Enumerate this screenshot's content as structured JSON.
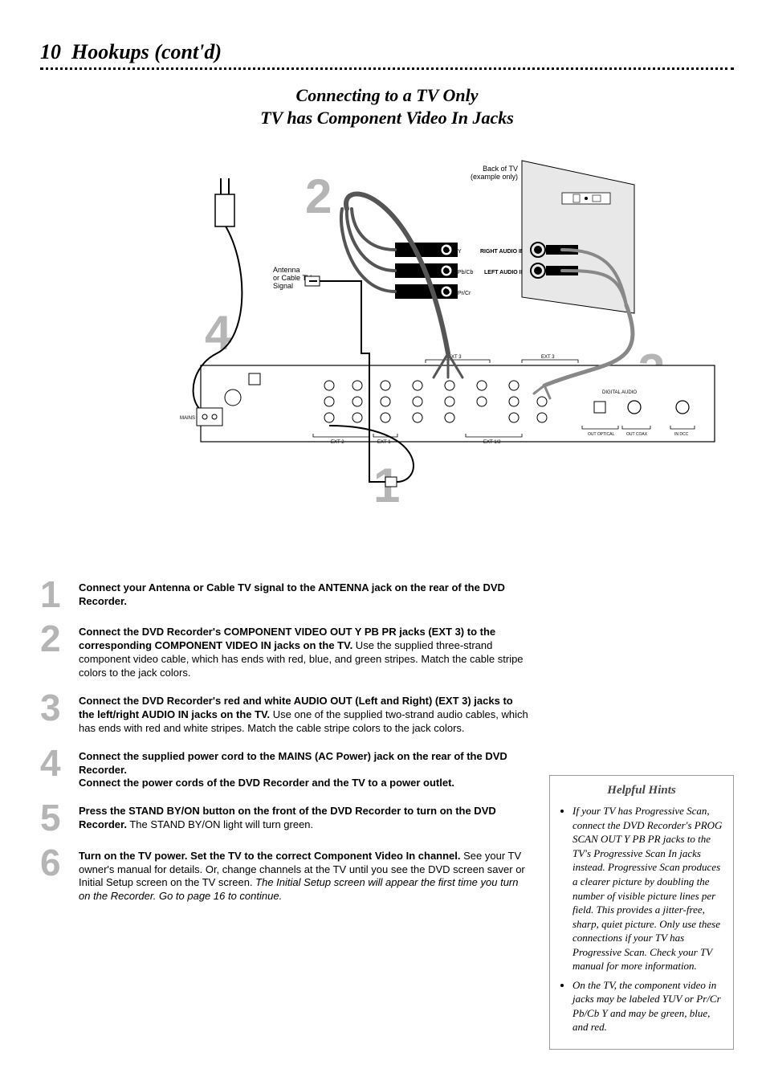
{
  "page": {
    "number": "10",
    "title": "Hookups (cont'd)",
    "section_line1": "Connecting to a TV Only",
    "section_line2": "TV has Component Video In Jacks"
  },
  "diagram": {
    "big_numbers": {
      "n1": "1",
      "n2": "2",
      "n3": "3",
      "n4": "4"
    },
    "labels": {
      "back_of_tv": "Back of TV\n(example only)",
      "antenna_signal": "Antenna\nor Cable TV\nSignal",
      "right_audio_in": "RIGHT AUDIO IN",
      "left_audio_in": "LEFT AUDIO IN",
      "y": "Y",
      "pbcb": "Pb/Cb",
      "prcr": "Pr/Cr"
    },
    "colors": {
      "num_gray": "#b5b5b5",
      "panel_gray": "#cfcfcf",
      "line": "#000000",
      "tv_fill": "#d9d9d9",
      "cable_dark": "#666666"
    }
  },
  "steps": [
    {
      "num": "1",
      "html": "<span class='bold'>Connect your Antenna or Cable TV signal to the ANTENNA jack on the rear of the DVD Recorder.</span>"
    },
    {
      "num": "2",
      "html": "<span class='bold'>Connect the DVD Recorder's COMPONENT VIDEO OUT Y P<span class='smallcaps'>B</span> P<span class='smallcaps'>R</span> jacks (EXT 3) to the corresponding COMPONENT VIDEO IN jacks on the TV.</span>  Use the supplied three-strand component video cable, which has ends with red, blue, and green stripes. Match the cable stripe colors to the jack colors."
    },
    {
      "num": "3",
      "html": "<span class='bold'>Connect the DVD Recorder's red and white AUDIO OUT (Left and Right) (EXT 3) jacks to the left/right AUDIO IN jacks on the TV.</span> Use one of the supplied two-strand audio cables, which has ends with red and white stripes. Match the cable stripe colors to the jack colors."
    },
    {
      "num": "4",
      "html": "<span class='bold'>Connect the supplied power cord to the MAINS (AC Power) jack on the rear of the DVD Recorder.<br>Connect the power cords of the DVD Recorder and the TV to a power outlet.</span>"
    },
    {
      "num": "5",
      "html": "<span class='bold'>Press the STAND BY/ON button on the front of the DVD Recorder to turn on the DVD Recorder.</span> The STAND BY/ON light will turn green."
    },
    {
      "num": "6",
      "html": "<span class='bold'>Turn on the TV power. Set the TV to the correct Component Video In channel.</span>  See your TV owner's manual for details. Or, change channels at the TV until you see the DVD screen saver or Initial Setup screen on the TV screen. <span class='ital'>The Initial Setup screen will appear the first time you turn on the Recorder. Go to page 16 to continue.</span>"
    }
  ],
  "hints": {
    "title": "Helpful Hints",
    "items": [
      "If your TV has Progressive Scan, connect the DVD Recorder's PROG SCAN OUT Y PB PR jacks to the TV's Progressive Scan In jacks instead. Progressive Scan produces a clearer picture by doubling the number of visible picture lines per field. This provides a jitter-free, sharp, quiet picture. Only use these connections if your TV has Progressive Scan. Check your TV manual for more information.",
      "On the TV, the component video in jacks may be labeled YUV or Pr/Cr Pb/Cb Y and may be green, blue, and red."
    ]
  }
}
